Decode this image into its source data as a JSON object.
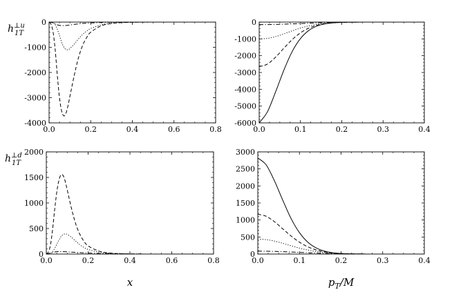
{
  "chart_data": [
    {
      "type": "line",
      "panel": "top-left",
      "ylabel": "h_{1T}^{⊥u}",
      "xlabel": "",
      "xlim": [
        0.0,
        0.8
      ],
      "ylim": [
        -4000,
        0
      ],
      "xticks": [
        "0.0",
        "0.2",
        "0.4",
        "0.6",
        "0.8"
      ],
      "yticks": [
        "-4000",
        "-3000",
        "-2000",
        "-1000",
        "0"
      ],
      "grid": false,
      "x": [
        0.0,
        0.01,
        0.02,
        0.03,
        0.04,
        0.05,
        0.06,
        0.07,
        0.08,
        0.09,
        0.1,
        0.12,
        0.14,
        0.16,
        0.18,
        0.2,
        0.25,
        0.3,
        0.35,
        0.4,
        0.45,
        0.5,
        0.6,
        0.7,
        0.8
      ],
      "series": [
        {
          "style": "dashed",
          "values": [
            0,
            -95,
            -430,
            -1150,
            -2150,
            -3000,
            -3520,
            -3720,
            -3640,
            -3350,
            -2950,
            -2150,
            -1450,
            -950,
            -620,
            -400,
            -150,
            -55,
            -20,
            -8,
            -3,
            -1,
            0,
            0,
            0
          ]
        },
        {
          "style": "dotted",
          "values": [
            0,
            -3,
            -25,
            -110,
            -290,
            -540,
            -790,
            -980,
            -1080,
            -1100,
            -1050,
            -880,
            -680,
            -500,
            -360,
            -255,
            -110,
            -45,
            -18,
            -7,
            -3,
            -1,
            0,
            0,
            0
          ]
        },
        {
          "style": "dash-dot",
          "values": [
            0,
            -10,
            -35,
            -75,
            -110,
            -130,
            -140,
            -140,
            -135,
            -125,
            -115,
            -92,
            -72,
            -56,
            -43,
            -33,
            -17,
            -8,
            -4,
            -2,
            -1,
            0,
            0,
            0,
            0
          ]
        }
      ]
    },
    {
      "type": "line",
      "panel": "top-right",
      "xlabel": "",
      "ylabel": "",
      "xlim": [
        0.0,
        0.4
      ],
      "ylim": [
        -6000,
        0
      ],
      "xticks": [
        "0.0",
        "0.1",
        "0.2",
        "0.3",
        "0.4"
      ],
      "yticks": [
        "-6000",
        "-5000",
        "-4000",
        "-3000",
        "-2000",
        "-1000",
        "0"
      ],
      "grid": false,
      "x": [
        0.0,
        0.02,
        0.04,
        0.06,
        0.08,
        0.1,
        0.12,
        0.14,
        0.16,
        0.18,
        0.2,
        0.22,
        0.24,
        0.26,
        0.28,
        0.3,
        0.35,
        0.4
      ],
      "series": [
        {
          "style": "solid",
          "values": [
            -6000,
            -5340,
            -4140,
            -2850,
            -1750,
            -980,
            -500,
            -235,
            -105,
            -43,
            -17,
            -6,
            -2,
            -1,
            0,
            0,
            0,
            0
          ]
        },
        {
          "style": "dashed",
          "values": [
            -2650,
            -2500,
            -2080,
            -1550,
            -1040,
            -640,
            -360,
            -185,
            -90,
            -41,
            -18,
            -7,
            -3,
            -1,
            0,
            0,
            0,
            0
          ]
        },
        {
          "style": "dotted",
          "values": [
            -1000,
            -970,
            -860,
            -700,
            -520,
            -355,
            -225,
            -130,
            -70,
            -36,
            -17,
            -8,
            -3,
            -1,
            0,
            0,
            0,
            0
          ]
        },
        {
          "style": "dash-dot",
          "values": [
            -150,
            -148,
            -140,
            -125,
            -105,
            -85,
            -64,
            -45,
            -30,
            -19,
            -11,
            -6,
            -3,
            -2,
            -1,
            0,
            0,
            0
          ]
        }
      ]
    },
    {
      "type": "line",
      "panel": "bottom-left",
      "ylabel": "h_{1T}^{⊥d}",
      "xlabel": "x",
      "xlim": [
        0.0,
        0.8
      ],
      "ylim": [
        0,
        2000
      ],
      "xticks": [
        "0.0",
        "0.2",
        "0.4",
        "0.6",
        "0.8"
      ],
      "yticks": [
        "0",
        "500",
        "1000",
        "1500",
        "2000"
      ],
      "grid": false,
      "x": [
        0.0,
        0.01,
        0.02,
        0.03,
        0.04,
        0.05,
        0.06,
        0.07,
        0.08,
        0.09,
        0.1,
        0.12,
        0.14,
        0.16,
        0.18,
        0.2,
        0.25,
        0.3,
        0.35,
        0.4,
        0.45,
        0.5,
        0.6,
        0.7,
        0.8
      ],
      "series": [
        {
          "style": "dashed",
          "values": [
            0,
            40,
            180,
            480,
            870,
            1210,
            1440,
            1550,
            1540,
            1430,
            1260,
            900,
            600,
            390,
            250,
            160,
            60,
            22,
            8,
            3,
            1,
            0,
            0,
            0,
            0
          ]
        },
        {
          "style": "dotted",
          "values": [
            0,
            2,
            12,
            45,
            110,
            190,
            270,
            340,
            380,
            395,
            385,
            330,
            255,
            185,
            130,
            90,
            38,
            15,
            6,
            2,
            1,
            0,
            0,
            0,
            0
          ]
        },
        {
          "style": "dash-dot",
          "values": [
            0,
            8,
            20,
            32,
            41,
            46,
            48,
            48,
            47,
            45,
            43,
            38,
            33,
            28,
            24,
            20,
            12,
            7,
            4,
            2,
            1,
            0,
            0,
            0,
            0
          ]
        }
      ]
    },
    {
      "type": "line",
      "panel": "bottom-right",
      "xlabel": "p_T/M",
      "ylabel": "",
      "xlim": [
        0.0,
        0.4
      ],
      "ylim": [
        0,
        3000
      ],
      "xticks": [
        "0.0",
        "0.1",
        "0.2",
        "0.3",
        "0.4"
      ],
      "yticks": [
        "0",
        "500",
        "1000",
        "1500",
        "2000",
        "2500",
        "3000"
      ],
      "grid": false,
      "x": [
        0.0,
        0.02,
        0.04,
        0.06,
        0.08,
        0.1,
        0.12,
        0.14,
        0.16,
        0.18,
        0.2,
        0.22,
        0.24,
        0.26,
        0.28,
        0.3,
        0.35,
        0.4
      ],
      "series": [
        {
          "style": "solid",
          "values": [
            2820,
            2620,
            2150,
            1580,
            1040,
            630,
            350,
            180,
            86,
            38,
            16,
            6,
            2,
            1,
            0,
            0,
            0,
            0
          ]
        },
        {
          "style": "dashed",
          "values": [
            1170,
            1110,
            950,
            740,
            530,
            350,
            215,
            122,
            65,
            32,
            15,
            7,
            3,
            1,
            0,
            0,
            0,
            0
          ]
        },
        {
          "style": "dotted",
          "values": [
            440,
            425,
            380,
            315,
            243,
            175,
            118,
            75,
            45,
            25,
            13,
            6,
            3,
            1,
            0,
            0,
            0,
            0
          ]
        },
        {
          "style": "dash-dot",
          "values": [
            85,
            83,
            78,
            70,
            60,
            49,
            38,
            28,
            19,
            13,
            8,
            5,
            3,
            1,
            1,
            0,
            0,
            0
          ]
        }
      ]
    }
  ]
}
